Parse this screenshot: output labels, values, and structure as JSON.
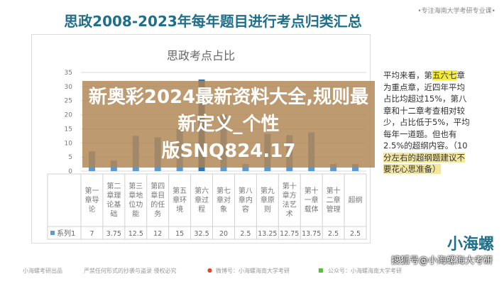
{
  "header": {
    "title": "思政2008-2023年每年题目进行考点归类汇总",
    "tagline": "•专注海南大学考研专业课•"
  },
  "chart_data": {
    "type": "bar",
    "title": "思政考点占比",
    "categories": [
      "第一章导论",
      "第二章理论基础",
      "第三章地位功能",
      "第四章目的任务",
      "第五章环境",
      "第六章过程",
      "第七章对象",
      "第八章内容",
      "第九章原则",
      "第十章方法艺术",
      "第十一章载体",
      "第十二章管理",
      "超纲"
    ],
    "series": [
      {
        "name": "系列1",
        "values": [
          7,
          3.75,
          12.5,
          12,
          15,
          32.5,
          20,
          2.5,
          13.25,
          12.75,
          13.75,
          2.5,
          2.5
        ],
        "labels": [
          "7",
          "3.75",
          "12.5",
          "12",
          "15",
          "32.5",
          "20",
          "2.5",
          "13.25",
          "12.75",
          "13.75",
          "2.5",
          "2.5"
        ]
      }
    ],
    "yticks": [
      "0",
      "5",
      "10",
      "15",
      "20",
      "25",
      "30",
      "35"
    ],
    "ylim": [
      0,
      35
    ],
    "grid": true,
    "data_table": true,
    "colors": {
      "bar": "#5b9bd5",
      "highlight": "#2e75b6"
    }
  },
  "note": {
    "lines": [
      [
        "平均来看，第",
        "五六七",
        "章"
      ],
      [
        "为重点章，近四年平均"
      ],
      [
        "占比均超过15%，第八"
      ],
      [
        "章和十二章考查相对较"
      ],
      [
        "少，占比低于5%，平均"
      ],
      [
        "每年一道题。但也有"
      ],
      [
        "2.5%的超纲内容。（10"
      ],
      [
        "分左右的超纲题建议不"
      ],
      [
        "要花心思准备）"
      ]
    ]
  },
  "banner": {
    "line1": "新奥彩2024最新资料大全,规则最新定义_个性",
    "line2": "版SNQ824.17"
  },
  "footer": {
    "producer": "小海螺考研出品",
    "copyright": "严禁任何形式的抄袭与盗录 侵权必究",
    "weibo": "微博号：小海螺海南大学考研",
    "wechat": "公众号：小海螺海南大学考研",
    "logo": "小海螺",
    "sohu": "搜狐号@小海螺海大考研"
  }
}
